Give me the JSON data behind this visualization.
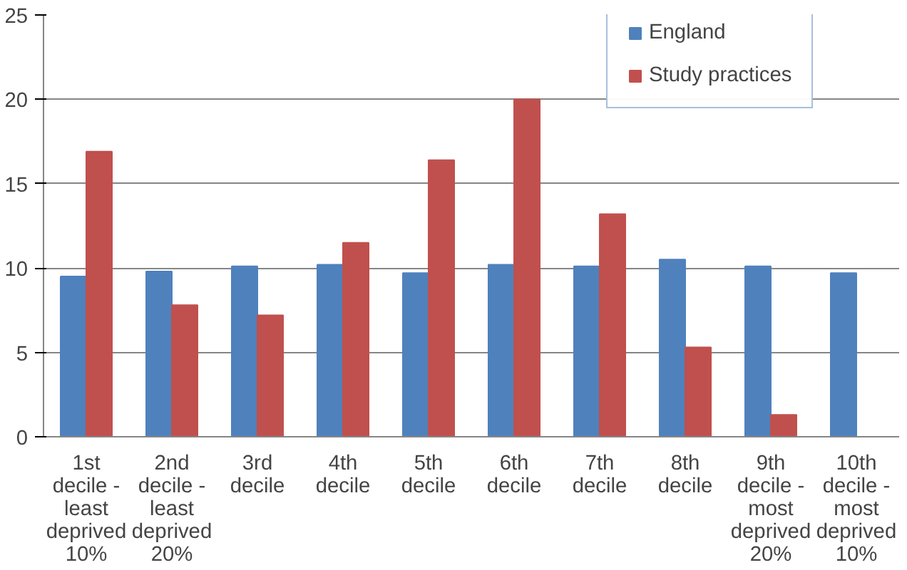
{
  "chart_data": {
    "type": "bar",
    "categories": [
      "1st decile - least deprived 10%",
      "2nd decile - least deprived 20%",
      "3rd decile",
      "4th decile",
      "5th decile",
      "6th decile",
      "7th decile",
      "8th decile",
      "9th decile - most deprived 20%",
      "10th decile - most deprived 10%"
    ],
    "series": [
      {
        "name": "England",
        "color": "#4f81bd",
        "values": [
          9.5,
          9.8,
          10.1,
          10.2,
          9.7,
          10.2,
          10.1,
          10.5,
          10.1,
          9.7
        ]
      },
      {
        "name": "Study practices",
        "color": "#c0504d",
        "values": [
          16.9,
          7.8,
          7.2,
          11.5,
          16.4,
          20.0,
          13.2,
          5.3,
          1.3,
          0
        ]
      }
    ],
    "ylim": [
      0,
      25
    ],
    "yticks": [
      0,
      5,
      10,
      15,
      20,
      25
    ],
    "grid": "y",
    "legend": "top right"
  }
}
